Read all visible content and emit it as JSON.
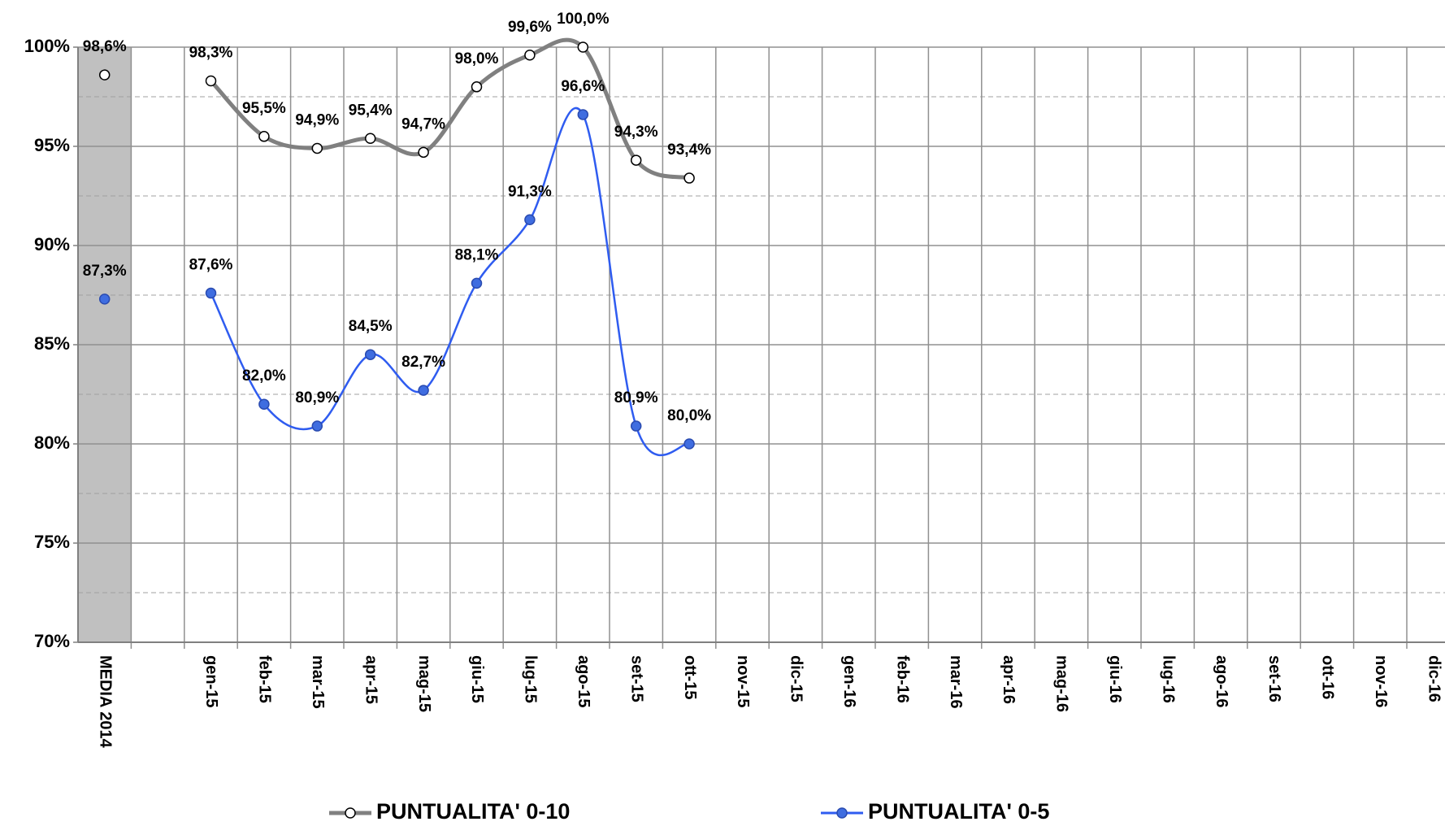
{
  "chart_data": {
    "type": "line",
    "categories": [
      "MEDIA 2014",
      null,
      "gen-15",
      "feb-15",
      "mar-15",
      "apr-15",
      "mag-15",
      "giu-15",
      "lug-15",
      "ago-15",
      "set-15",
      "ott-15",
      "nov-15",
      "dic-15",
      "gen-16",
      "feb-16",
      "mar-16",
      "apr-16",
      "mag-16",
      "giu-16",
      "lug-16",
      "ago-16",
      "set-16",
      "ott-16",
      "nov-16",
      "dic-16"
    ],
    "series": [
      {
        "name": "PUNTUALITA' 0-10",
        "color": "#808080",
        "marker_fill": "#ffffff",
        "values": [
          98.6,
          null,
          98.3,
          95.5,
          94.9,
          95.4,
          94.7,
          98.0,
          99.6,
          100.0,
          94.3,
          93.4,
          null,
          null,
          null,
          null,
          null,
          null,
          null,
          null,
          null,
          null,
          null,
          null,
          null,
          null
        ],
        "value_labels": [
          "98,6%",
          null,
          "98,3%",
          "95,5%",
          "94,9%",
          "95,4%",
          "94,7%",
          "98,0%",
          "99,6%",
          "100,0%",
          "94,3%",
          "93,4%",
          null,
          null,
          null,
          null,
          null,
          null,
          null,
          null,
          null,
          null,
          null,
          null,
          null,
          null
        ]
      },
      {
        "name": "PUNTUALITA' 0-5",
        "color": "#2f5cf0",
        "marker_fill": "#3f6de0",
        "values": [
          87.3,
          null,
          87.6,
          82.0,
          80.9,
          84.5,
          82.7,
          88.1,
          91.3,
          96.6,
          80.9,
          80.0,
          null,
          null,
          null,
          null,
          null,
          null,
          null,
          null,
          null,
          null,
          null,
          null,
          null,
          null
        ],
        "value_labels": [
          "87,3%",
          null,
          "87,6%",
          "82,0%",
          "80,9%",
          "84,5%",
          "82,7%",
          "88,1%",
          "91,3%",
          "96,6%",
          "80,9%",
          "80,0%",
          null,
          null,
          null,
          null,
          null,
          null,
          null,
          null,
          null,
          null,
          null,
          null,
          null,
          null
        ]
      }
    ],
    "ylim": [
      70,
      100
    ],
    "yticks": [
      {
        "value": 70,
        "label": "70%"
      },
      {
        "value": 75,
        "label": "75%"
      },
      {
        "value": 80,
        "label": "80%"
      },
      {
        "value": 85,
        "label": "85%"
      },
      {
        "value": 90,
        "label": "90%"
      },
      {
        "value": 95,
        "label": "95%"
      },
      {
        "value": 100,
        "label": "100%"
      }
    ],
    "minor_yticks": [
      72.5,
      77.5,
      82.5,
      87.5,
      92.5,
      97.5
    ],
    "grid": true,
    "legend": "bottom"
  }
}
